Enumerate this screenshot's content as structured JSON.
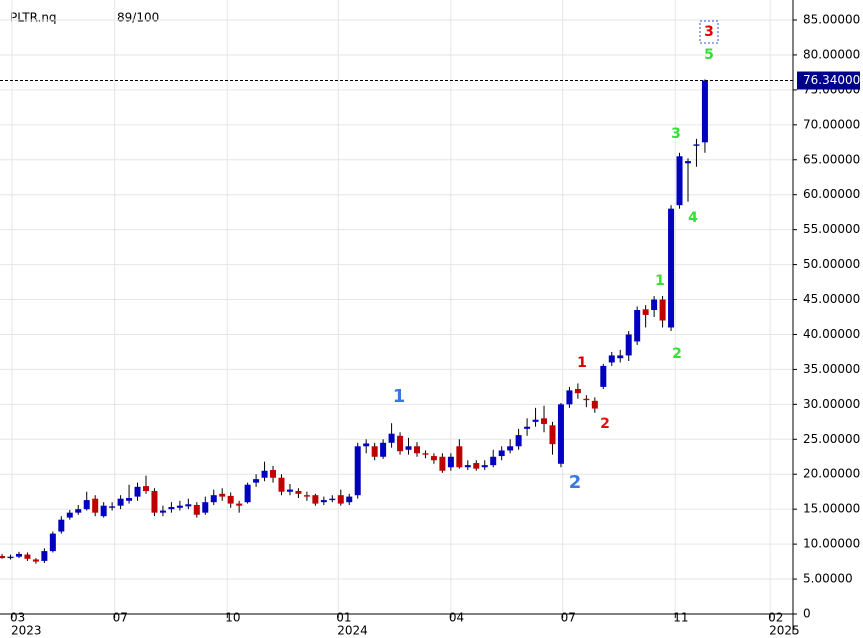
{
  "chart_data": {
    "type": "candlestick",
    "symbol": "PLTR.nq",
    "score": "89/100",
    "up_color": "#0000c0",
    "down_color": "#c00000",
    "grid": true,
    "last_price": 76.34,
    "last_price_label": "76.34000",
    "ohlc": [
      [
        8.3,
        8.6,
        7.9,
        8.0
      ],
      [
        8.0,
        8.5,
        7.8,
        8.2
      ],
      [
        8.2,
        8.9,
        8.0,
        8.6
      ],
      [
        8.5,
        8.8,
        7.6,
        7.9
      ],
      [
        7.8,
        8.0,
        7.2,
        7.5
      ],
      [
        7.6,
        9.4,
        7.3,
        9.0
      ],
      [
        9.0,
        11.8,
        8.8,
        11.5
      ],
      [
        11.8,
        14.0,
        11.5,
        13.5
      ],
      [
        13.8,
        14.9,
        13.5,
        14.5
      ],
      [
        14.5,
        15.6,
        14.2,
        15.0
      ],
      [
        15.0,
        17.5,
        14.8,
        16.3
      ],
      [
        16.5,
        17.0,
        14.0,
        14.5
      ],
      [
        14.0,
        16.0,
        13.8,
        15.5
      ],
      [
        15.2,
        16.0,
        14.8,
        15.4
      ],
      [
        15.5,
        17.0,
        15.0,
        16.5
      ],
      [
        16.2,
        18.5,
        15.8,
        16.6
      ],
      [
        16.8,
        18.8,
        16.2,
        18.2
      ],
      [
        18.3,
        19.8,
        17.2,
        17.6
      ],
      [
        17.6,
        18.0,
        14.0,
        14.5
      ],
      [
        14.5,
        15.5,
        14.0,
        14.8
      ],
      [
        15.0,
        16.0,
        14.5,
        15.3
      ],
      [
        15.2,
        16.2,
        14.8,
        15.5
      ],
      [
        15.4,
        16.5,
        15.0,
        15.7
      ],
      [
        15.6,
        16.0,
        13.8,
        14.2
      ],
      [
        14.5,
        16.8,
        14.2,
        16.0
      ],
      [
        16.0,
        17.8,
        15.6,
        17.0
      ],
      [
        17.2,
        18.0,
        16.2,
        16.8
      ],
      [
        16.9,
        17.4,
        15.2,
        15.8
      ],
      [
        15.8,
        16.2,
        14.5,
        15.5
      ],
      [
        16.0,
        18.8,
        15.8,
        18.5
      ],
      [
        18.8,
        20.0,
        18.2,
        19.3
      ],
      [
        19.5,
        21.8,
        19.0,
        20.5
      ],
      [
        20.6,
        21.2,
        18.8,
        19.5
      ],
      [
        19.5,
        20.0,
        17.0,
        17.5
      ],
      [
        17.5,
        18.6,
        17.0,
        17.8
      ],
      [
        17.6,
        18.0,
        16.6,
        17.2
      ],
      [
        17.0,
        17.5,
        16.2,
        16.8
      ],
      [
        17.0,
        17.2,
        15.5,
        15.8
      ],
      [
        16.0,
        16.8,
        15.6,
        16.3
      ],
      [
        16.3,
        17.0,
        16.0,
        16.5
      ],
      [
        17.0,
        17.8,
        15.5,
        15.8
      ],
      [
        16.0,
        17.2,
        15.6,
        16.8
      ],
      [
        17.0,
        24.5,
        16.5,
        24.0
      ],
      [
        24.0,
        25.0,
        23.0,
        24.4
      ],
      [
        24.0,
        24.5,
        22.0,
        22.5
      ],
      [
        22.5,
        25.0,
        22.2,
        24.5
      ],
      [
        24.5,
        27.3,
        23.8,
        25.8
      ],
      [
        25.5,
        26.0,
        22.8,
        23.3
      ],
      [
        23.5,
        25.2,
        22.8,
        24.0
      ],
      [
        24.0,
        24.6,
        22.5,
        23.0
      ],
      [
        23.0,
        23.4,
        22.3,
        22.8
      ],
      [
        22.6,
        23.0,
        21.5,
        22.0
      ],
      [
        22.5,
        23.0,
        20.2,
        20.5
      ],
      [
        21.0,
        23.0,
        20.5,
        22.5
      ],
      [
        24.0,
        25.0,
        20.8,
        21.0
      ],
      [
        21.0,
        22.0,
        20.6,
        21.3
      ],
      [
        21.6,
        22.0,
        20.5,
        20.8
      ],
      [
        21.0,
        22.0,
        20.6,
        21.3
      ],
      [
        21.3,
        23.5,
        21.0,
        22.5
      ],
      [
        22.6,
        24.0,
        22.0,
        23.4
      ],
      [
        23.4,
        25.0,
        23.0,
        24.0
      ],
      [
        24.0,
        26.5,
        23.5,
        25.6
      ],
      [
        26.5,
        28.0,
        25.5,
        26.8
      ],
      [
        27.5,
        29.5,
        26.8,
        27.8
      ],
      [
        28.0,
        29.8,
        26.0,
        27.2
      ],
      [
        27.0,
        27.5,
        22.8,
        24.3
      ],
      [
        21.5,
        30.2,
        21.0,
        30.0
      ],
      [
        30.0,
        32.5,
        29.5,
        32.0
      ],
      [
        32.2,
        33.0,
        30.8,
        31.6
      ],
      [
        30.8,
        31.3,
        29.6,
        30.6
      ],
      [
        30.5,
        31.0,
        28.8,
        29.4
      ],
      [
        32.5,
        35.8,
        32.2,
        35.5
      ],
      [
        36.0,
        37.5,
        35.5,
        37.0
      ],
      [
        36.6,
        37.8,
        36.0,
        37.0
      ],
      [
        37.0,
        40.5,
        36.2,
        40.0
      ],
      [
        39.0,
        44.0,
        38.5,
        43.5
      ],
      [
        43.6,
        44.2,
        41.0,
        42.8
      ],
      [
        43.5,
        45.5,
        42.5,
        45.0
      ],
      [
        45.0,
        45.5,
        41.0,
        42.0
      ],
      [
        41.0,
        58.5,
        40.5,
        58.0
      ],
      [
        58.5,
        66.0,
        58.0,
        65.5
      ],
      [
        64.5,
        65.2,
        59.0,
        64.8
      ],
      [
        67.0,
        68.0,
        64.0,
        67.2
      ],
      [
        67.5,
        76.5,
        66.0,
        76.34
      ]
    ],
    "xlim": [
      -0.24,
      93.4
    ],
    "xticks": [
      {
        "value": 1.18,
        "label": "03"
      },
      {
        "value": 13.3,
        "label": "07"
      },
      {
        "value": 26.6,
        "label": "10"
      },
      {
        "value": 39.7,
        "label": "01"
      },
      {
        "value": 53.0,
        "label": "04"
      },
      {
        "value": 66.2,
        "label": "07"
      },
      {
        "value": 79.5,
        "label": "11"
      },
      {
        "value": 90.7,
        "label": "02"
      }
    ],
    "year_labels": [
      {
        "value": 1.18,
        "label": "2023"
      },
      {
        "value": 39.7,
        "label": "2024"
      },
      {
        "value": 90.7,
        "label": "2025"
      }
    ],
    "ylim": [
      0,
      85
    ],
    "yticks": [
      0,
      {
        "value": 5,
        "label": "5.00000"
      },
      {
        "value": 10,
        "label": "10.00000"
      },
      {
        "value": 15,
        "label": "15.00000"
      },
      {
        "value": 20,
        "label": "20.00000"
      },
      {
        "value": 25,
        "label": "25.00000"
      },
      {
        "value": 30,
        "label": "30.00000"
      },
      {
        "value": 35,
        "label": "35.00000"
      },
      {
        "value": 40,
        "label": "40.00000"
      },
      {
        "value": 45,
        "label": "45.00000"
      },
      {
        "value": 50,
        "label": "50.00000"
      },
      {
        "value": 55,
        "label": "55.00000"
      },
      {
        "value": 60,
        "label": "60.00000"
      },
      {
        "value": 65,
        "label": "65.00000"
      },
      {
        "value": 70,
        "label": "70.00000"
      },
      {
        "value": 75,
        "label": "75.00000"
      },
      {
        "value": 80,
        "label": "80.00000"
      },
      {
        "value": 85,
        "label": "85.00000"
      }
    ],
    "annotations": [
      {
        "text": "1",
        "color": "#3a78e0"
      },
      {
        "text": "2",
        "color": "#3a78e0"
      },
      {
        "text": "1",
        "color": "#d00000"
      },
      {
        "text": "2",
        "color": "#e01010"
      },
      {
        "text": "1",
        "color": "#33e033"
      },
      {
        "text": "2",
        "color": "#33e033"
      },
      {
        "text": "3",
        "color": "#33e033"
      },
      {
        "text": "4",
        "color": "#33e033"
      },
      {
        "text": "5",
        "color": "#33e033"
      },
      {
        "text": "3",
        "color": "#e00000"
      }
    ]
  }
}
